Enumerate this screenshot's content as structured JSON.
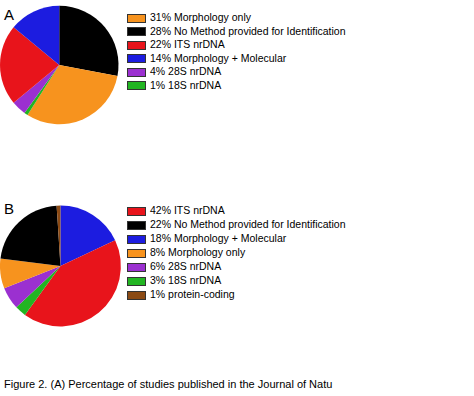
{
  "chart_data": [
    {
      "type": "pie",
      "title": "A",
      "legend": "right",
      "categories": [
        "31% Morphology only",
        "28% No Method provided for Identification",
        "22% ITS nrDNA",
        "14% Morphology + Molecular",
        "4% 28S nrDNA",
        "1% 18S nrDNA"
      ],
      "values": [
        31,
        28,
        22,
        14,
        4,
        1
      ],
      "colors": [
        "#f7931e",
        "#000000",
        "#e8141b",
        "#1c1ce0",
        "#9b30d0",
        "#22b522"
      ]
    },
    {
      "type": "pie",
      "title": "B",
      "legend": "right",
      "categories": [
        "42% ITS nrDNA",
        "22% No Method provided for Identification",
        "18% Morphology + Molecular",
        "8% Morphology only",
        "6% 28S nrDNA",
        "3% 18S nrDNA",
        "1% protein-coding"
      ],
      "values": [
        42,
        22,
        18,
        8,
        6,
        3,
        1
      ],
      "colors": [
        "#e8141b",
        "#000000",
        "#1c1ce0",
        "#f7931e",
        "#9b30d0",
        "#22b522",
        "#8b4a14"
      ]
    }
  ],
  "caption": "Figure 2. (A) Percentage of studies published in the Journal of Natu"
}
